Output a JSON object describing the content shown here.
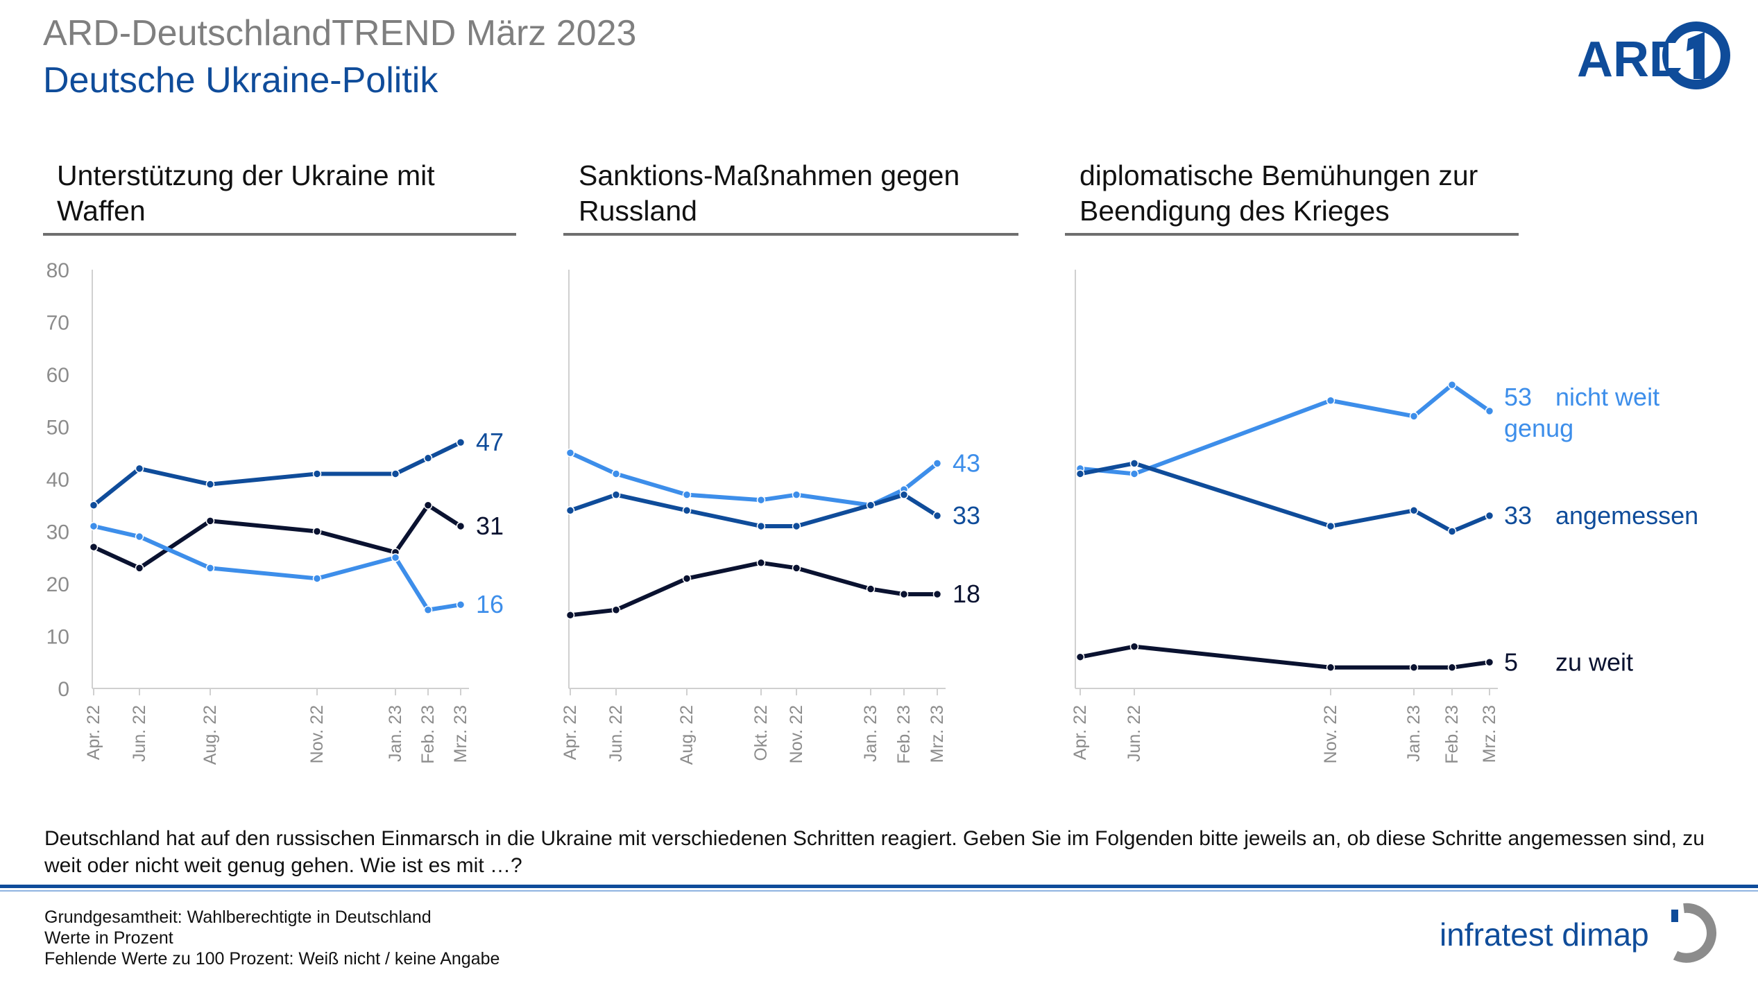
{
  "header": {
    "title": "ARD-DeutschlandTREND März 2023",
    "subtitle": "Deutsche Ukraine-Politik"
  },
  "logos": {
    "ard": "ARD",
    "infratest": "infratest dimap"
  },
  "colors": {
    "angemessen": "#0f4c9a",
    "nicht_weit_genug": "#3d8eea",
    "zu_weit": "#0a1230",
    "axis": "#d0d0d0",
    "tick_label": "#8c8c8c"
  },
  "question": "Deutschland hat auf den russischen Einmarsch in die Ukraine mit verschiedenen Schritten reagiert. Geben Sie im Folgenden bitte jeweils an, ob diese Schritte angemessen sind, zu weit oder nicht weit genug gehen. Wie ist es mit …?",
  "footer": {
    "line1": "Grundgesamtheit: Wahlberechtigte in Deutschland",
    "line2": "Werte in Prozent",
    "line3": "Fehlende Werte zu 100 Prozent: Weiß nicht / keine Angabe"
  },
  "chart_data": [
    {
      "type": "line",
      "title_line1": "Unterstützung der Ukraine mit",
      "title_line2": "Waffen",
      "ylim": [
        0,
        80
      ],
      "yticks": [
        0,
        10,
        20,
        30,
        40,
        50,
        60,
        70,
        80
      ],
      "categories": [
        "Apr. 22",
        "Jun. 22",
        "Aug. 22",
        "Nov. 22",
        "Jan. 23",
        "Feb. 23",
        "Mrz. 23"
      ],
      "series": [
        {
          "key": "angemessen",
          "values": [
            35,
            42,
            39,
            41,
            41,
            44,
            47
          ],
          "end_label": "47",
          "legend": ""
        },
        {
          "key": "zu_weit",
          "values": [
            27,
            23,
            32,
            30,
            26,
            35,
            31
          ],
          "end_label": "31",
          "legend": ""
        },
        {
          "key": "nicht_weit_genug",
          "values": [
            31,
            29,
            23,
            21,
            25,
            15,
            16
          ],
          "end_label": "16",
          "legend": ""
        }
      ]
    },
    {
      "type": "line",
      "title_line1": "Sanktions-Maßnahmen gegen",
      "title_line2": "Russland",
      "ylim": [
        0,
        80
      ],
      "categories": [
        "Apr. 22",
        "Jun. 22",
        "Aug. 22",
        "Okt. 22",
        "Nov. 22",
        "Jan. 23",
        "Feb. 23",
        "Mrz. 23"
      ],
      "series": [
        {
          "key": "nicht_weit_genug",
          "values": [
            45,
            41,
            37,
            36,
            37,
            35,
            38,
            43
          ],
          "end_label": "43",
          "legend": ""
        },
        {
          "key": "angemessen",
          "values": [
            34,
            37,
            34,
            31,
            31,
            35,
            37,
            33
          ],
          "end_label": "33",
          "legend": ""
        },
        {
          "key": "zu_weit",
          "values": [
            14,
            15,
            21,
            24,
            23,
            19,
            18,
            18
          ],
          "end_label": "18",
          "legend": ""
        }
      ]
    },
    {
      "type": "line",
      "title_line1": "diplomatische Bemühungen zur",
      "title_line2": "Beendigung des Krieges",
      "ylim": [
        0,
        80
      ],
      "categories": [
        "Apr. 22",
        "Jun. 22",
        "Nov. 22",
        "Jan. 23",
        "Feb. 23",
        "Mrz. 23"
      ],
      "series": [
        {
          "key": "nicht_weit_genug",
          "values": [
            42,
            41,
            55,
            52,
            58,
            53
          ],
          "end_label": "53",
          "legend": "nicht weit",
          "legend2": "genug"
        },
        {
          "key": "angemessen",
          "values": [
            41,
            43,
            31,
            34,
            30,
            33
          ],
          "end_label": "33",
          "legend": "angemessen"
        },
        {
          "key": "zu_weit",
          "values": [
            6,
            8,
            4,
            4,
            4,
            5
          ],
          "end_label": "5",
          "legend": "zu weit"
        }
      ]
    }
  ]
}
